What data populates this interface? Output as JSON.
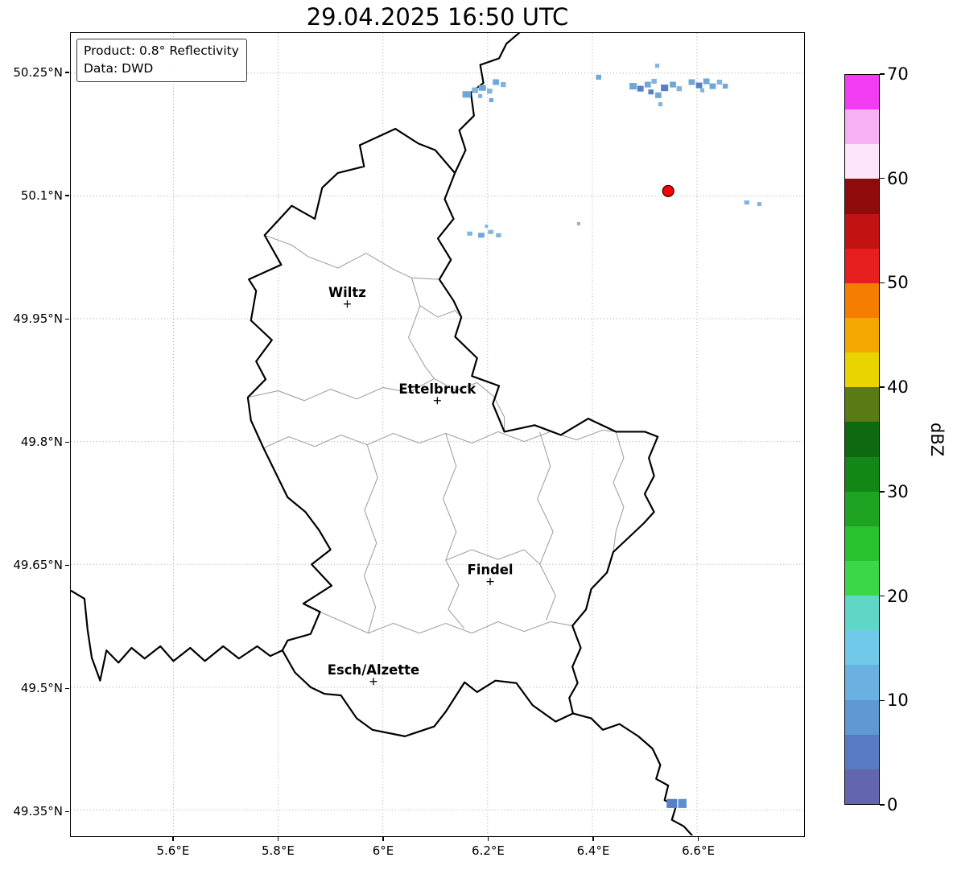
{
  "title": "29.04.2025 16:50 UTC",
  "annotation": {
    "product": "Product: 0.8° Reflectivity",
    "source": "Data: DWD"
  },
  "axes": {
    "extent": {
      "lon_min": 5.404,
      "lon_max": 6.803,
      "lat_min": 49.319,
      "lat_max": 50.299
    },
    "lat_ticks": [
      {
        "value": 50.25,
        "label": "50.25°N"
      },
      {
        "value": 50.1,
        "label": "50.1°N"
      },
      {
        "value": 49.95,
        "label": "49.95°N"
      },
      {
        "value": 49.8,
        "label": "49.8°N"
      },
      {
        "value": 49.65,
        "label": "49.65°N"
      },
      {
        "value": 49.5,
        "label": "49.5°N"
      },
      {
        "value": 49.35,
        "label": "49.35°N"
      }
    ],
    "lon_ticks": [
      {
        "value": 5.6,
        "label": "5.6°E"
      },
      {
        "value": 5.8,
        "label": "5.8°E"
      },
      {
        "value": 6.0,
        "label": "6°E"
      },
      {
        "value": 6.2,
        "label": "6.2°E"
      },
      {
        "value": 6.4,
        "label": "6.4°E"
      },
      {
        "value": 6.6,
        "label": "6.6°E"
      }
    ]
  },
  "colorbar": {
    "label": "dBZ",
    "vmin": 0,
    "vmax": 70,
    "ticks": [
      0,
      10,
      20,
      30,
      40,
      50,
      60,
      70
    ],
    "segments_bottom_to_top": [
      "#6366ae",
      "#587ac2",
      "#5f98d2",
      "#6ab0e0",
      "#70c9e8",
      "#60d6c8",
      "#3bd748",
      "#2ac22e",
      "#1ea422",
      "#138715",
      "#0d6a10",
      "#5a7a14",
      "#e8d400",
      "#f4a800",
      "#f57d00",
      "#e81e1e",
      "#c21212",
      "#8f0b0b",
      "#fbe6fb",
      "#f7b0f3",
      "#f23cf2"
    ]
  },
  "map": {
    "cities": [
      {
        "name": "Wiltz",
        "lon": 5.932,
        "lat": 49.968
      },
      {
        "name": "Ettelbruck",
        "lon": 6.104,
        "lat": 49.85
      },
      {
        "name": "Findel",
        "lon": 6.205,
        "lat": 49.629
      },
      {
        "name": "Esch/Alzette",
        "lon": 5.982,
        "lat": 49.507
      }
    ],
    "radar_site": {
      "lon": 6.545,
      "lat": 50.106,
      "color": "#ff0000"
    },
    "country_borders": [
      [
        [
          6.024,
          50.182
        ],
        [
          6.068,
          50.164
        ],
        [
          6.1,
          50.156
        ],
        [
          6.1375,
          50.128
        ],
        [
          6.118,
          50.096
        ],
        [
          6.135,
          50.072
        ],
        [
          6.105,
          50.048
        ],
        [
          6.13,
          50.022
        ],
        [
          6.108,
          49.998
        ],
        [
          6.135,
          49.972
        ],
        [
          6.15,
          49.952
        ],
        [
          6.138,
          49.928
        ],
        [
          6.18,
          49.902
        ],
        [
          6.17,
          49.88
        ],
        [
          6.222,
          49.868
        ],
        [
          6.21,
          49.846
        ],
        [
          6.232,
          49.812
        ],
        [
          6.29,
          49.82
        ],
        [
          6.34,
          49.808
        ],
        [
          6.392,
          49.828
        ],
        [
          6.445,
          49.812
        ],
        [
          6.5,
          49.812
        ],
        [
          6.525,
          49.806
        ],
        [
          6.508,
          49.78
        ],
        [
          6.518,
          49.758
        ],
        [
          6.5,
          49.736
        ],
        [
          6.518,
          49.714
        ],
        [
          6.498,
          49.7
        ],
        [
          6.44,
          49.665
        ],
        [
          6.428,
          49.64
        ],
        [
          6.398,
          49.62
        ],
        [
          6.388,
          49.595
        ],
        [
          6.362,
          49.575
        ],
        [
          6.378,
          49.548
        ],
        [
          6.362,
          49.525
        ],
        [
          6.372,
          49.505
        ],
        [
          6.356,
          49.487
        ],
        [
          6.363,
          49.468
        ],
        [
          6.33,
          49.458
        ],
        [
          6.286,
          49.478
        ],
        [
          6.255,
          49.505
        ],
        [
          6.215,
          49.508
        ],
        [
          6.18,
          49.494
        ],
        [
          6.156,
          49.506
        ],
        [
          6.12,
          49.47
        ],
        [
          6.098,
          49.452
        ],
        [
          6.042,
          49.44
        ],
        [
          5.98,
          49.448
        ],
        [
          5.95,
          49.462
        ],
        [
          5.92,
          49.49
        ],
        [
          5.888,
          49.492
        ],
        [
          5.862,
          49.5
        ],
        [
          5.832,
          49.518
        ],
        [
          5.808,
          49.545
        ],
        [
          5.818,
          49.557
        ],
        [
          5.862,
          49.565
        ],
        [
          5.88,
          49.592
        ],
        [
          5.848,
          49.602
        ],
        [
          5.902,
          49.624
        ],
        [
          5.864,
          49.65
        ],
        [
          5.9,
          49.668
        ],
        [
          5.878,
          49.692
        ],
        [
          5.852,
          49.714
        ],
        [
          5.818,
          49.732
        ],
        [
          5.772,
          49.792
        ],
        [
          5.748,
          49.826
        ],
        [
          5.742,
          49.854
        ],
        [
          5.776,
          49.876
        ],
        [
          5.758,
          49.898
        ],
        [
          5.788,
          49.924
        ],
        [
          5.748,
          49.948
        ],
        [
          5.758,
          49.984
        ],
        [
          5.744,
          49.998
        ],
        [
          5.806,
          50.016
        ],
        [
          5.774,
          50.052
        ],
        [
          5.826,
          50.088
        ],
        [
          5.87,
          50.072
        ],
        [
          5.884,
          50.11
        ],
        [
          5.914,
          50.128
        ],
        [
          5.964,
          50.136
        ],
        [
          5.956,
          50.162
        ],
        [
          6.024,
          50.182
        ]
      ],
      [
        [
          6.1375,
          50.128
        ],
        [
          6.158,
          50.156
        ],
        [
          6.146,
          50.18
        ],
        [
          6.174,
          50.198
        ],
        [
          6.168,
          50.226
        ],
        [
          6.192,
          50.238
        ],
        [
          6.186,
          50.26
        ],
        [
          6.222,
          50.268
        ],
        [
          6.236,
          50.286
        ],
        [
          6.262,
          50.3
        ]
      ],
      [
        [
          5.404,
          49.618
        ],
        [
          5.43,
          49.608
        ],
        [
          5.436,
          49.57
        ],
        [
          5.444,
          49.536
        ],
        [
          5.46,
          49.508
        ],
        [
          5.472,
          49.545
        ],
        [
          5.495,
          49.53
        ],
        [
          5.52,
          49.548
        ],
        [
          5.545,
          49.535
        ],
        [
          5.575,
          49.55
        ],
        [
          5.6,
          49.532
        ],
        [
          5.632,
          49.548
        ],
        [
          5.66,
          49.532
        ],
        [
          5.695,
          49.55
        ],
        [
          5.725,
          49.535
        ],
        [
          5.76,
          49.55
        ],
        [
          5.785,
          49.538
        ],
        [
          5.808,
          49.545
        ]
      ],
      [
        [
          6.363,
          49.468
        ],
        [
          6.398,
          49.462
        ],
        [
          6.42,
          49.448
        ],
        [
          6.452,
          49.455
        ],
        [
          6.488,
          49.44
        ],
        [
          6.515,
          49.425
        ],
        [
          6.53,
          49.405
        ],
        [
          6.522,
          49.388
        ],
        [
          6.545,
          49.38
        ],
        [
          6.538,
          49.362
        ],
        [
          6.56,
          49.355
        ],
        [
          6.552,
          49.338
        ],
        [
          6.575,
          49.33
        ],
        [
          6.592,
          49.318
        ]
      ]
    ],
    "district_borders": [
      [
        [
          5.774,
          50.052
        ],
        [
          5.826,
          50.04
        ],
        [
          5.857,
          50.026
        ],
        [
          5.914,
          50.012
        ],
        [
          5.968,
          50.03
        ],
        [
          6.021,
          50.01
        ],
        [
          6.055,
          50.0
        ],
        [
          6.108,
          49.998
        ]
      ],
      [
        [
          6.055,
          50.0
        ],
        [
          6.071,
          49.966
        ],
        [
          6.049,
          49.927
        ],
        [
          6.08,
          49.892
        ],
        [
          6.098,
          49.877
        ]
      ],
      [
        [
          5.742,
          49.854
        ],
        [
          5.8,
          49.862
        ],
        [
          5.85,
          49.85
        ],
        [
          5.9,
          49.864
        ],
        [
          5.95,
          49.852
        ],
        [
          6.0,
          49.866
        ],
        [
          6.05,
          49.86
        ],
        [
          6.098,
          49.877
        ]
      ],
      [
        [
          6.098,
          49.877
        ],
        [
          6.14,
          49.862
        ],
        [
          6.18,
          49.872
        ],
        [
          6.212,
          49.855
        ],
        [
          6.232,
          49.83
        ],
        [
          6.232,
          49.812
        ]
      ],
      [
        [
          5.772,
          49.792
        ],
        [
          5.82,
          49.806
        ],
        [
          5.87,
          49.794
        ],
        [
          5.92,
          49.808
        ],
        [
          5.97,
          49.796
        ],
        [
          6.02,
          49.81
        ],
        [
          6.07,
          49.798
        ],
        [
          6.12,
          49.81
        ],
        [
          6.17,
          49.798
        ],
        [
          6.22,
          49.812
        ],
        [
          6.27,
          49.8
        ],
        [
          6.32,
          49.812
        ],
        [
          6.37,
          49.802
        ],
        [
          6.42,
          49.814
        ],
        [
          6.445,
          49.812
        ]
      ],
      [
        [
          5.97,
          49.796
        ],
        [
          5.99,
          49.756
        ],
        [
          5.965,
          49.716
        ],
        [
          5.988,
          49.676
        ],
        [
          5.964,
          49.636
        ],
        [
          5.986,
          49.598
        ],
        [
          5.972,
          49.566
        ]
      ],
      [
        [
          5.88,
          49.592
        ],
        [
          5.93,
          49.578
        ],
        [
          5.972,
          49.566
        ],
        [
          6.02,
          49.578
        ],
        [
          6.07,
          49.566
        ],
        [
          6.12,
          49.578
        ],
        [
          6.17,
          49.566
        ],
        [
          6.22,
          49.58
        ],
        [
          6.27,
          49.568
        ],
        [
          6.32,
          49.58
        ],
        [
          6.362,
          49.575
        ]
      ],
      [
        [
          6.12,
          49.81
        ],
        [
          6.14,
          49.77
        ],
        [
          6.115,
          49.73
        ],
        [
          6.14,
          49.69
        ],
        [
          6.12,
          49.655
        ],
        [
          6.145,
          49.625
        ],
        [
          6.125,
          49.595
        ],
        [
          6.155,
          49.572
        ]
      ],
      [
        [
          6.3,
          49.811
        ],
        [
          6.32,
          49.77
        ],
        [
          6.295,
          49.73
        ],
        [
          6.325,
          49.69
        ],
        [
          6.3,
          49.65
        ],
        [
          6.33,
          49.612
        ],
        [
          6.312,
          49.582
        ]
      ],
      [
        [
          6.12,
          49.655
        ],
        [
          6.17,
          49.668
        ],
        [
          6.22,
          49.656
        ],
        [
          6.27,
          49.668
        ],
        [
          6.3,
          49.65
        ]
      ],
      [
        [
          6.071,
          49.966
        ],
        [
          6.105,
          49.952
        ],
        [
          6.138,
          49.96
        ],
        [
          6.15,
          49.952
        ]
      ],
      [
        [
          6.445,
          49.812
        ],
        [
          6.46,
          49.78
        ],
        [
          6.44,
          49.75
        ],
        [
          6.46,
          49.72
        ],
        [
          6.445,
          49.69
        ],
        [
          6.44,
          49.665
        ]
      ]
    ],
    "echoes": [
      [
        6.16,
        50.224,
        0.016,
        0.008,
        "#6fa8d8"
      ],
      [
        6.176,
        50.229,
        0.012,
        0.007,
        "#82b4dc"
      ],
      [
        6.19,
        50.232,
        0.014,
        0.007,
        "#6fa8d8"
      ],
      [
        6.204,
        50.228,
        0.01,
        0.006,
        "#82b4dc"
      ],
      [
        6.216,
        50.239,
        0.012,
        0.007,
        "#6fa8d8"
      ],
      [
        6.23,
        50.236,
        0.01,
        0.006,
        "#82b4dc"
      ],
      [
        6.207,
        50.217,
        0.008,
        0.005,
        "#6fa8d8"
      ],
      [
        6.186,
        50.222,
        0.008,
        0.005,
        "#82b4dc"
      ],
      [
        6.412,
        50.245,
        0.01,
        0.006,
        "#6fa8d8"
      ],
      [
        6.478,
        50.234,
        0.014,
        0.008,
        "#6fa8d8"
      ],
      [
        6.492,
        50.231,
        0.012,
        0.007,
        "#5580c8"
      ],
      [
        6.506,
        50.236,
        0.012,
        0.007,
        "#6fa8d8"
      ],
      [
        6.518,
        50.24,
        0.01,
        0.006,
        "#82b4dc"
      ],
      [
        6.512,
        50.227,
        0.01,
        0.006,
        "#5580c8"
      ],
      [
        6.526,
        50.223,
        0.012,
        0.007,
        "#6fa8d8"
      ],
      [
        6.538,
        50.232,
        0.014,
        0.008,
        "#5580c8"
      ],
      [
        6.554,
        50.236,
        0.012,
        0.007,
        "#6fa8d8"
      ],
      [
        6.53,
        50.212,
        0.008,
        0.005,
        "#82b4dc"
      ],
      [
        6.524,
        50.259,
        0.008,
        0.005,
        "#82b4dc"
      ],
      [
        6.566,
        50.231,
        0.01,
        0.006,
        "#82b4dc"
      ],
      [
        6.59,
        50.239,
        0.012,
        0.007,
        "#6fa8d8"
      ],
      [
        6.604,
        50.235,
        0.012,
        0.007,
        "#5580c8"
      ],
      [
        6.618,
        50.24,
        0.012,
        0.007,
        "#6fa8d8"
      ],
      [
        6.63,
        50.234,
        0.012,
        0.007,
        "#6fa8d8"
      ],
      [
        6.643,
        50.239,
        0.01,
        0.006,
        "#82b4dc"
      ],
      [
        6.654,
        50.234,
        0.01,
        0.006,
        "#6fa8d8"
      ],
      [
        6.61,
        50.229,
        0.008,
        0.005,
        "#82b4dc"
      ],
      [
        6.695,
        50.092,
        0.01,
        0.005,
        "#82b4dc"
      ],
      [
        6.719,
        50.09,
        0.008,
        0.005,
        "#82b4dc"
      ],
      [
        6.374,
        50.066,
        0.006,
        0.004,
        "#82b4dc"
      ],
      [
        6.166,
        50.054,
        0.01,
        0.005,
        "#82b4dc"
      ],
      [
        6.188,
        50.052,
        0.012,
        0.006,
        "#6fa8d8"
      ],
      [
        6.206,
        50.056,
        0.01,
        0.005,
        "#82b4dc"
      ],
      [
        6.221,
        50.052,
        0.01,
        0.005,
        "#82b4dc"
      ],
      [
        6.198,
        50.063,
        0.006,
        0.004,
        "#82b4dc"
      ],
      [
        6.552,
        49.358,
        0.02,
        0.011,
        "#5580c8"
      ],
      [
        6.572,
        49.358,
        0.016,
        0.011,
        "#5b8fd0"
      ]
    ]
  }
}
